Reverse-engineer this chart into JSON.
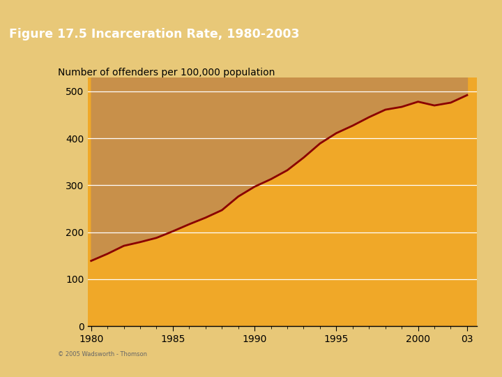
{
  "title": "Figure 17.5 Incarceration Rate, 1980-2003",
  "ylabel": "Number of offenders per 100,000 population",
  "years": [
    1980,
    1981,
    1982,
    1983,
    1984,
    1985,
    1986,
    1987,
    1988,
    1989,
    1990,
    1991,
    1992,
    1993,
    1994,
    1995,
    1996,
    1997,
    1998,
    1999,
    2000,
    2001,
    2002,
    2003
  ],
  "values": [
    139,
    154,
    171,
    179,
    188,
    202,
    217,
    231,
    247,
    276,
    297,
    313,
    332,
    359,
    389,
    411,
    427,
    445,
    461,
    467,
    478,
    470,
    476,
    492
  ],
  "line_color": "#8B0000",
  "fill_below_color": "#E8A030",
  "fill_above_color": "#CC8840",
  "background_outer": "#E8C878",
  "chart_box_bg": "#FFFFFF",
  "chart_plot_bg": "#F0A828",
  "title_bar_color": "#C8A050",
  "grid_color": "#FFFFFF",
  "ylim": [
    0,
    530
  ],
  "yticks": [
    0,
    100,
    200,
    300,
    400,
    500
  ],
  "xticks": [
    1980,
    1985,
    1990,
    1995,
    2000,
    2003
  ],
  "xtick_labels": [
    "1980",
    "1985",
    "1990",
    "1995",
    "2000",
    "03"
  ],
  "copyright": "© 2005 Wadsworth - Thomson"
}
